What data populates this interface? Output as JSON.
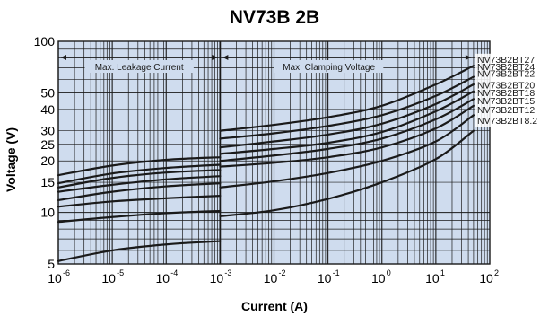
{
  "chart_data": {
    "type": "line",
    "title": "NV73B 2B",
    "xlabel": "Current (A)",
    "ylabel": "Voltage (V)",
    "xscale": "log",
    "yscale": "log",
    "xlim": [
      1e-06,
      100
    ],
    "ylim": [
      5,
      100
    ],
    "x_ticks": [
      {
        "base": "10",
        "exp": "-6",
        "value": 1e-06
      },
      {
        "base": "10",
        "exp": "-5",
        "value": 1e-05
      },
      {
        "base": "10",
        "exp": "-4",
        "value": 0.0001
      },
      {
        "base": "10",
        "exp": "-3",
        "value": 0.001
      },
      {
        "base": "10",
        "exp": "-2",
        "value": 0.01
      },
      {
        "base": "10",
        "exp": "-1",
        "value": 0.1
      },
      {
        "base": "10",
        "exp": "0",
        "value": 1
      },
      {
        "base": "10",
        "exp": "1",
        "value": 10
      },
      {
        "base": "10",
        "exp": "2",
        "value": 100
      }
    ],
    "y_ticks": [
      {
        "label": "5",
        "value": 5
      },
      {
        "label": "10",
        "value": 10
      },
      {
        "label": "15",
        "value": 15
      },
      {
        "label": "20",
        "value": 20
      },
      {
        "label": "25",
        "value": 25
      },
      {
        "label": "30",
        "value": 30
      },
      {
        "label": "40",
        "value": 40
      },
      {
        "label": "50",
        "value": 50
      },
      {
        "label": "100",
        "value": 100
      }
    ],
    "grid": true,
    "background": "#cfdcee",
    "line_color": "#1a1a1a",
    "regions": [
      {
        "label": "Max. Leakage  Current",
        "from": 1e-06,
        "to": 0.001
      },
      {
        "label": "Max. Clamping Voltage",
        "from": 0.001,
        "to": 50
      }
    ],
    "series": [
      {
        "name": "NV73B2BT27",
        "label_y": 75,
        "leakage": {
          "x": [
            1e-06,
            1e-05,
            0.0001,
            0.001
          ],
          "y": [
            16.5,
            18.8,
            20.3,
            21.0
          ]
        },
        "clamping": {
          "x": [
            0.001,
            0.01,
            0.1,
            1,
            10,
            50
          ],
          "y": [
            30,
            32.5,
            36,
            42,
            56,
            72
          ]
        }
      },
      {
        "name": "NV73B2BT24",
        "label_y": 68,
        "leakage": {
          "x": [
            1e-06,
            1e-05,
            0.0001,
            0.001
          ],
          "y": [
            14.8,
            16.9,
            18.2,
            19.0
          ]
        },
        "clamping": {
          "x": [
            0.001,
            0.01,
            0.1,
            1,
            10,
            50
          ],
          "y": [
            27,
            29,
            32,
            37,
            48,
            62
          ]
        }
      },
      {
        "name": "NV73B2BT22",
        "label_y": 62,
        "leakage": {
          "x": [
            1e-06,
            1e-05,
            0.0001,
            0.001
          ],
          "y": [
            14.0,
            15.9,
            17.1,
            17.7
          ]
        },
        "clamping": {
          "x": [
            0.001,
            0.01,
            0.1,
            1,
            10,
            50
          ],
          "y": [
            24,
            26,
            28.5,
            33,
            43,
            56
          ]
        }
      },
      {
        "name": "NV73B2BT20",
        "label_y": 53,
        "leakage": {
          "x": [
            1e-06,
            1e-05,
            0.0001,
            0.001
          ],
          "y": [
            13.2,
            14.5,
            15.6,
            16.3
          ]
        },
        "clamping": {
          "x": [
            0.001,
            0.01,
            0.1,
            1,
            10,
            50
          ],
          "y": [
            22,
            23.5,
            25.5,
            29.5,
            39,
            51
          ]
        }
      },
      {
        "name": "NV73B2BT18",
        "label_y": 48,
        "leakage": {
          "x": [
            1e-06,
            1e-05,
            0.0001,
            0.001
          ],
          "y": [
            11.8,
            13.2,
            14.2,
            14.8
          ]
        },
        "clamping": {
          "x": [
            0.001,
            0.01,
            0.1,
            1,
            10,
            50
          ],
          "y": [
            20,
            21.5,
            23.5,
            27,
            35,
            46
          ]
        }
      },
      {
        "name": "NV73B2BT15",
        "label_y": 43,
        "leakage": {
          "x": [
            1e-06,
            1e-05,
            0.0001,
            0.001
          ],
          "y": [
            10.8,
            11.6,
            12.1,
            12.5
          ]
        },
        "clamping": {
          "x": [
            0.001,
            0.01,
            0.1,
            1,
            10,
            50
          ],
          "y": [
            18.5,
            19.5,
            21,
            24,
            31,
            42
          ]
        }
      },
      {
        "name": "NV73B2BT12",
        "label_y": 38,
        "leakage": {
          "x": [
            1e-06,
            1e-05,
            0.0001,
            0.001
          ],
          "y": [
            8.8,
            9.4,
            9.9,
            10.2
          ]
        },
        "clamping": {
          "x": [
            0.001,
            0.01,
            0.1,
            1,
            10,
            50
          ],
          "y": [
            14,
            15.2,
            17,
            20,
            26,
            37
          ]
        }
      },
      {
        "name": "NV73B2BT8.2",
        "label_y": 33,
        "leakage": {
          "x": [
            1e-06,
            1e-05,
            0.0001,
            0.001
          ],
          "y": [
            5.2,
            6.0,
            6.5,
            6.8
          ]
        },
        "clamping": {
          "x": [
            0.001,
            0.01,
            0.1,
            1,
            10,
            50
          ],
          "y": [
            9.5,
            10.3,
            12,
            15,
            20.5,
            30
          ]
        }
      }
    ]
  }
}
